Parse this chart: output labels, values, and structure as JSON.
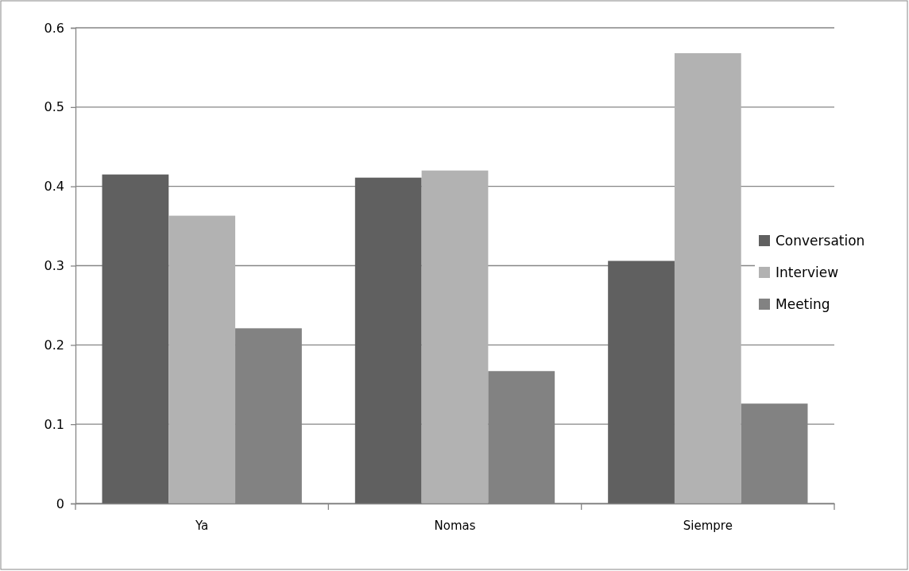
{
  "chart_data": {
    "type": "bar",
    "categories": [
      "Ya",
      "Nomas",
      "Siempre"
    ],
    "series": [
      {
        "name": "Conversation",
        "color": "#606060",
        "values": [
          0.415,
          0.411,
          0.306
        ]
      },
      {
        "name": "Interview",
        "color": "#b2b2b2",
        "values": [
          0.363,
          0.42,
          0.568
        ]
      },
      {
        "name": "Meeting",
        "color": "#828282",
        "values": [
          0.221,
          0.167,
          0.126
        ]
      }
    ],
    "ylim": [
      0,
      0.6
    ],
    "yticks": [
      0,
      0.1,
      0.2,
      0.3,
      0.4,
      0.5,
      0.6
    ],
    "grid": "y",
    "legend": "right"
  }
}
